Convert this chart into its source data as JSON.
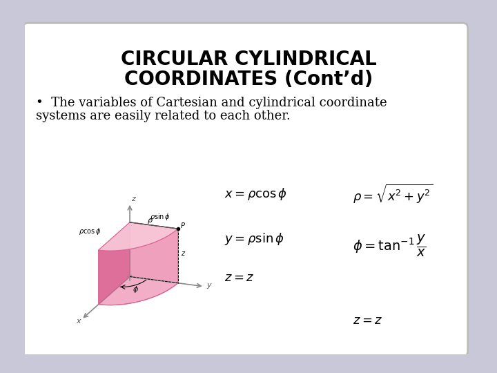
{
  "title_line1": "CIRCULAR CYLINDRICAL",
  "title_line2": "COORDINATES (Cont’d)",
  "bullet_text1": "•  The variables of Cartesian and cylindrical coordinate",
  "bullet_text2": "systems are easily related to each other.",
  "bg_color": "#ffffff",
  "outer_bg": "#c8c8d8",
  "title_color": "#000000",
  "bullet_color": "#000000",
  "title_fontsize": 20,
  "bullet_fontsize": 13,
  "pink": "#f0a0bc",
  "pink_dark": "#d86090",
  "pink_light": "#f8c8d8",
  "pink_mid": "#e880a8",
  "eq_fontsize": 13
}
